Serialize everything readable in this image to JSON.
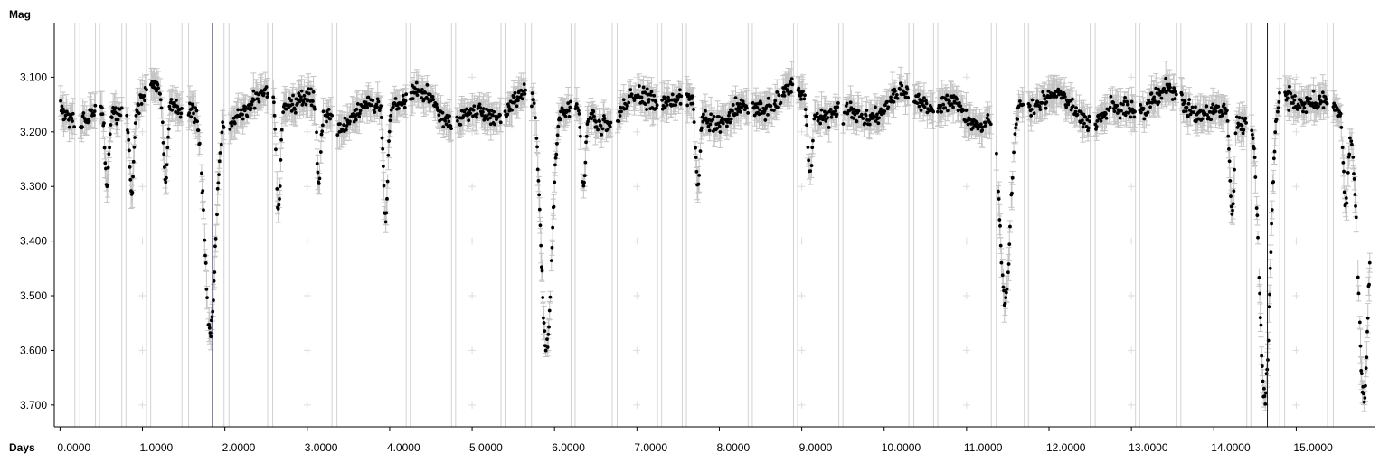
{
  "chart_data": {
    "type": "scatter",
    "title": "",
    "xlabel": "Days",
    "ylabel": "Mag",
    "xlim": [
      -0.07,
      15.95
    ],
    "ylim": [
      3.0,
      3.74
    ],
    "y_inverted": true,
    "grid": false,
    "x_ticks": [
      0,
      1,
      2,
      3,
      4,
      5,
      6,
      7,
      8,
      9,
      10,
      11,
      12,
      13,
      14,
      15
    ],
    "x_tick_labels": [
      "0.0000",
      "1.0000",
      "2.0000",
      "3.0000",
      "4.0000",
      "5.0000",
      "6.0000",
      "7.0000",
      "8.0000",
      "9.0000",
      "10.0000",
      "11.0000",
      "12.0000",
      "13.0000",
      "14.0000",
      "15.0000"
    ],
    "y_ticks": [
      3.1,
      3.2,
      3.3,
      3.4,
      3.5,
      3.6,
      3.7
    ],
    "y_tick_labels": [
      "3.100",
      "3.200",
      "3.300",
      "3.400",
      "3.500",
      "3.600",
      "3.700"
    ],
    "marked_days": [
      1.85,
      14.65
    ],
    "baseline_mag": 3.155,
    "eclipse_minima": [
      {
        "day": 1.82,
        "mag": 3.56
      },
      {
        "day": 5.9,
        "mag": 3.61
      },
      {
        "day": 11.47,
        "mag": 3.52
      },
      {
        "day": 14.62,
        "mag": 3.7
      },
      {
        "day": 15.82,
        "mag": 3.66
      }
    ],
    "secondary_dips": [
      {
        "day": 0.57,
        "mag": 3.29
      },
      {
        "day": 0.87,
        "mag": 3.31
      },
      {
        "day": 1.28,
        "mag": 3.31
      },
      {
        "day": 2.65,
        "mag": 3.36
      },
      {
        "day": 3.14,
        "mag": 3.3
      },
      {
        "day": 3.95,
        "mag": 3.37
      },
      {
        "day": 6.35,
        "mag": 3.31
      },
      {
        "day": 7.74,
        "mag": 3.3
      },
      {
        "day": 9.1,
        "mag": 3.29
      },
      {
        "day": 14.22,
        "mag": 3.33
      },
      {
        "day": 15.6,
        "mag": 3.31
      }
    ],
    "data_gaps": [
      [
        0.18,
        0.24
      ],
      [
        0.43,
        0.48
      ],
      [
        0.75,
        0.8
      ],
      [
        1.05,
        1.1
      ],
      [
        1.48,
        1.56
      ],
      [
        1.99,
        2.05
      ],
      [
        2.52,
        2.58
      ],
      [
        3.3,
        3.36
      ],
      [
        4.2,
        4.25
      ],
      [
        4.75,
        4.8
      ],
      [
        5.35,
        5.4
      ],
      [
        5.65,
        5.72
      ],
      [
        6.2,
        6.25
      ],
      [
        6.7,
        6.76
      ],
      [
        7.25,
        7.3
      ],
      [
        7.55,
        7.6
      ],
      [
        8.35,
        8.4
      ],
      [
        8.9,
        8.95
      ],
      [
        9.45,
        9.5
      ],
      [
        10.3,
        10.36
      ],
      [
        10.6,
        10.65
      ],
      [
        11.3,
        11.36
      ],
      [
        11.7,
        11.75
      ],
      [
        12.5,
        12.56
      ],
      [
        13.05,
        13.1
      ],
      [
        13.55,
        13.6
      ],
      [
        14.4,
        14.45
      ],
      [
        14.8,
        14.86
      ],
      [
        15.38,
        15.45
      ]
    ],
    "marker_color": "#000000",
    "errorbar_color": "#c4c4c4",
    "marked_line_color": "#1a1a3a"
  }
}
